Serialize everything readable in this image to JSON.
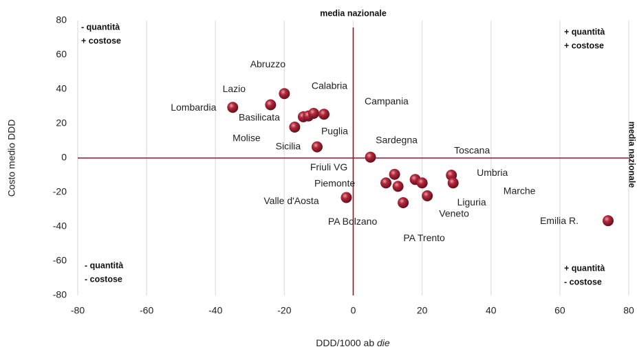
{
  "chart_data": {
    "type": "scatter",
    "x_label": {
      "text": "DDD/1000 ab",
      "emphasis": "die"
    },
    "y_label": "Costo medio DDD",
    "reference_label": "media nazionale",
    "reference_x": 0,
    "reference_y": 0,
    "quadrants": {
      "top_left": [
        "- quantità",
        "+ costose"
      ],
      "top_right": [
        "+ quantità",
        "+ costose"
      ],
      "bottom_left": [
        "- quantità",
        "- costose"
      ],
      "bottom_right": [
        "+ quantità",
        "- costose"
      ]
    },
    "point_labels": [
      "Lombardia",
      "Lazio",
      "Abruzzo",
      "Basilicata",
      "Puglia",
      "Calabria",
      "Campania",
      "Molise",
      "Sicilia",
      "Sardegna",
      "Friuli VG",
      "Piemonte",
      "PA Bolzano",
      "PA Trento",
      "Liguria",
      "Veneto",
      "Marche",
      "Valle d'Aosta",
      "Toscana",
      "Umbria",
      "Emilia R."
    ],
    "x": [
      -35,
      -24,
      -20,
      -14.5,
      -13,
      -11.5,
      -8.5,
      -17,
      -10.5,
      5,
      9.5,
      12,
      13,
      18,
      20,
      14.5,
      21.5,
      -2,
      28.5,
      29,
      74
    ],
    "values": [
      29.5,
      31,
      37.5,
      24,
      24.5,
      26,
      25.5,
      18,
      6.5,
      0.5,
      -14.5,
      -9.5,
      -16.5,
      -12.5,
      -14.5,
      -26,
      -22,
      -23,
      -10,
      -14.5,
      -36.5
    ],
    "color": "#9b1b2e",
    "line_color": "#8b1a2a",
    "xlim": [
      -80,
      80
    ],
    "ylim": [
      -80,
      80
    ],
    "xticks": [
      -80,
      -60,
      -40,
      -20,
      0,
      20,
      40,
      60,
      80
    ],
    "yticks": [
      -80,
      -60,
      -40,
      -20,
      0,
      20,
      40,
      60,
      80
    ],
    "grid": "x"
  }
}
